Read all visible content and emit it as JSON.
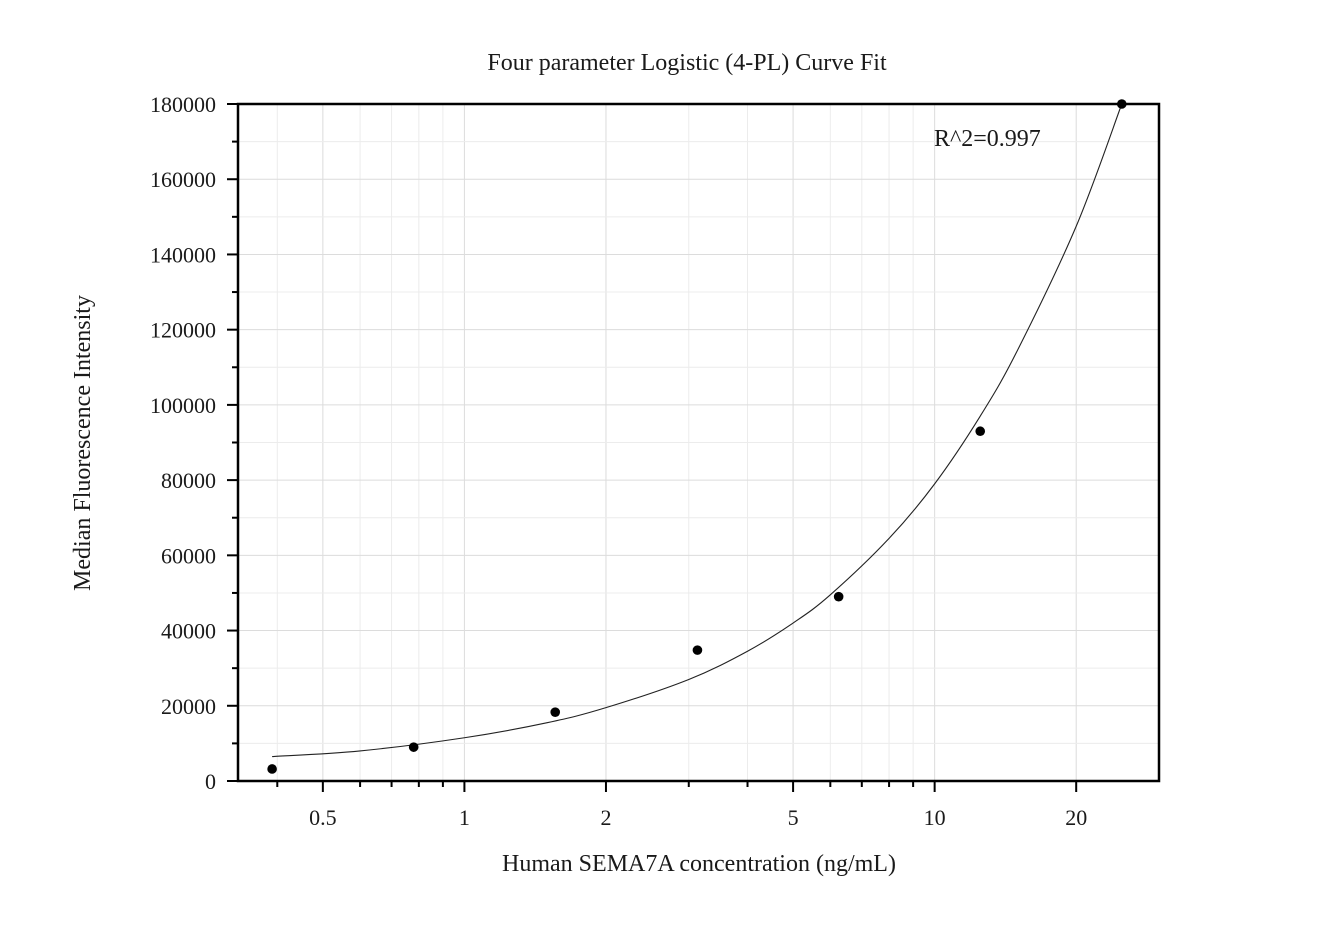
{
  "chart_data": {
    "type": "scatter",
    "title": "Four parameter Logistic (4-PL) Curve Fit",
    "xlabel": "Human SEMA7A concentration (ng/mL)",
    "ylabel": "Median Fluorescence Intensity",
    "xscale": "log",
    "xlim": [
      0.33,
      30
    ],
    "ylim": [
      0,
      180000
    ],
    "x_ticks": [
      0.5,
      1,
      2,
      5,
      10,
      20
    ],
    "x_tick_labels": [
      "0.5",
      "1",
      "2",
      "5",
      "10",
      "20"
    ],
    "y_ticks": [
      0,
      20000,
      40000,
      60000,
      80000,
      100000,
      120000,
      140000,
      160000,
      180000
    ],
    "y_tick_labels": [
      "0",
      "20000",
      "40000",
      "60000",
      "80000",
      "100000",
      "120000",
      "140000",
      "160000",
      "180000"
    ],
    "grid": true,
    "points": {
      "x": [
        0.39,
        0.78,
        1.56,
        3.13,
        6.25,
        12.5,
        25
      ],
      "y": [
        3200,
        9000,
        18300,
        34800,
        49000,
        93000,
        180000
      ]
    },
    "fit_curve": {
      "model": "4-PL",
      "x": [
        0.39,
        0.6,
        1,
        1.5,
        2,
        3,
        4,
        5,
        6,
        8,
        10,
        12.5,
        15,
        20,
        25
      ],
      "y": [
        6500,
        8000,
        11500,
        15500,
        19500,
        27000,
        34500,
        42000,
        49500,
        64500,
        79000,
        97000,
        114500,
        147500,
        180000
      ]
    },
    "annotation": "R^2=0.997",
    "legend": "none"
  }
}
